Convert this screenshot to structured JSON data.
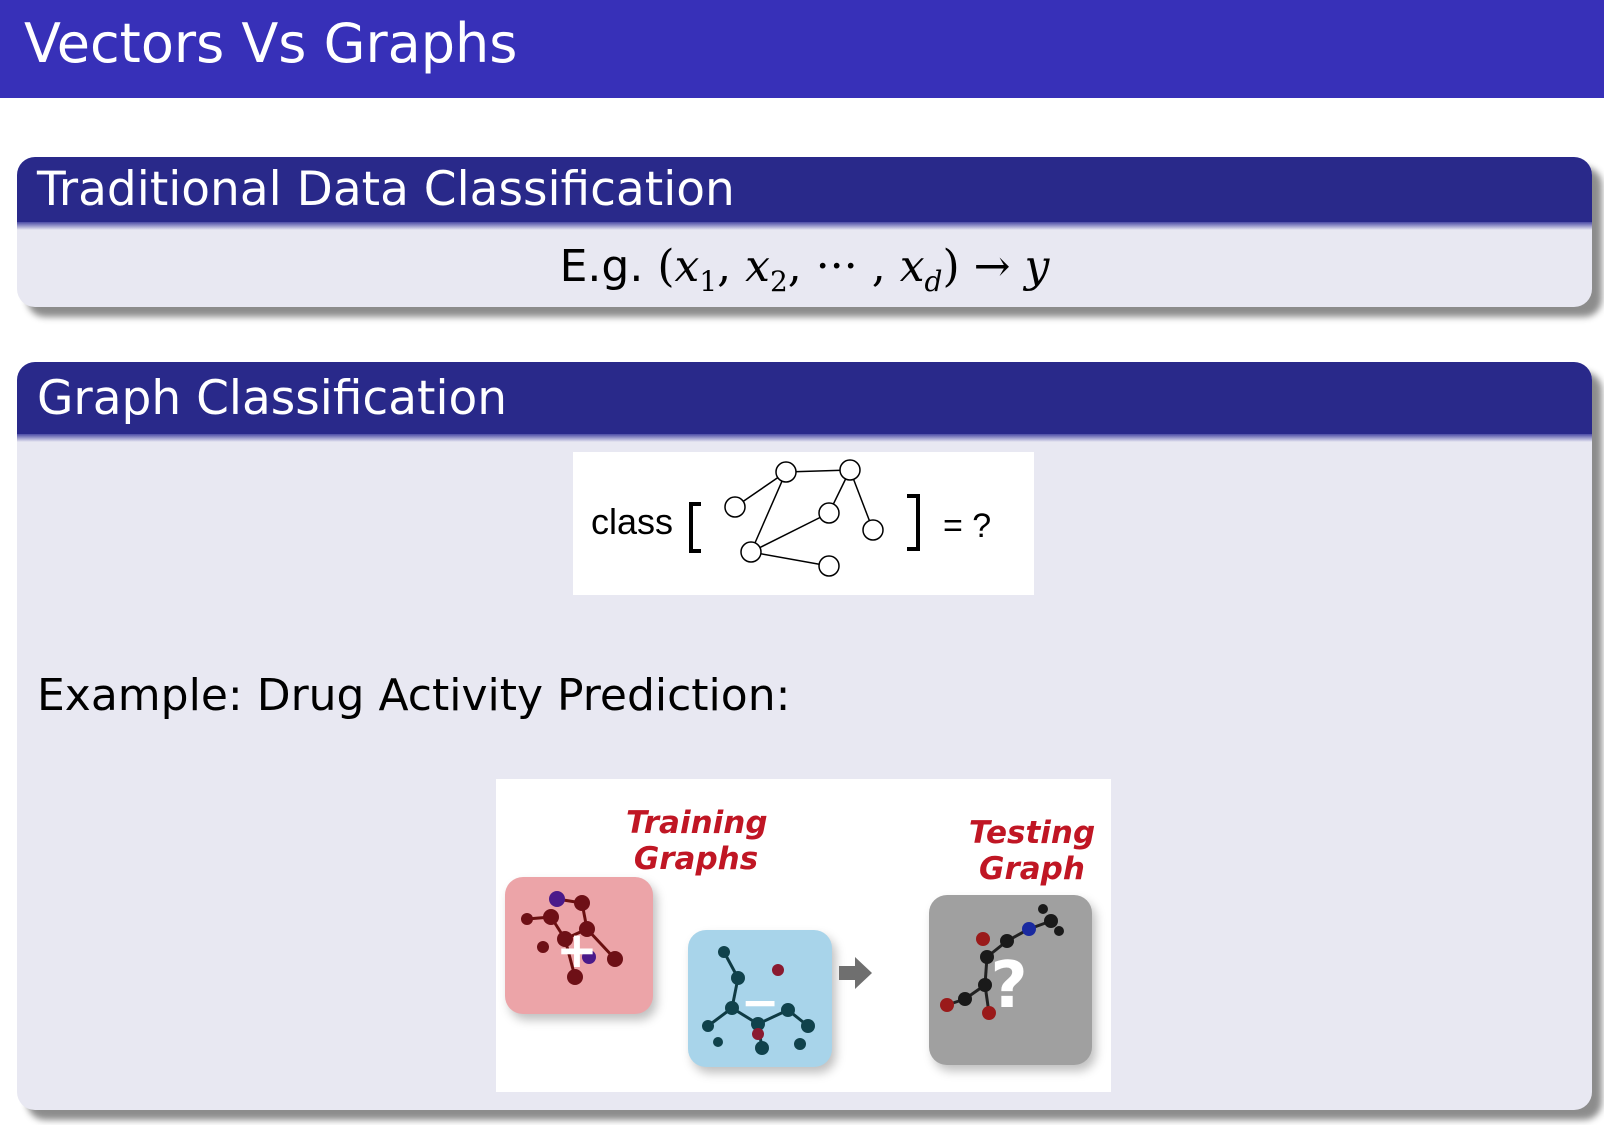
{
  "slide": {
    "title": "Vectors Vs Graphs"
  },
  "block1": {
    "title": "Traditional Data Classification",
    "formula_prefix": "E.g.",
    "formula_open": "(",
    "formula_x": "x",
    "sub1": "1",
    "sub2": "2",
    "subd": "d",
    "formula_dots": "···",
    "formula_close": ")",
    "formula_arrow": "→",
    "formula_y": "y"
  },
  "block2": {
    "title": "Graph Classification",
    "graph_expr": {
      "prefix": "class",
      "suffix": "= ?"
    },
    "example_text": "Example: Drug Activity Prediction:",
    "drug_figure": {
      "training_label_line1": "Training",
      "training_label_line2": "Graphs",
      "testing_label_line1": "Testing",
      "testing_label_line2": "Graph",
      "positive_sign": "+",
      "negative_sign": "−",
      "unknown_sign": "?"
    }
  },
  "colors": {
    "title_bar": "#3730b8",
    "block_header": "#29298a",
    "block_body": "#e8e8f2",
    "label_red": "#c01624",
    "positive_tile": "#eca4a8",
    "negative_tile": "#a8d4ea",
    "test_tile": "#a0a0a0"
  }
}
